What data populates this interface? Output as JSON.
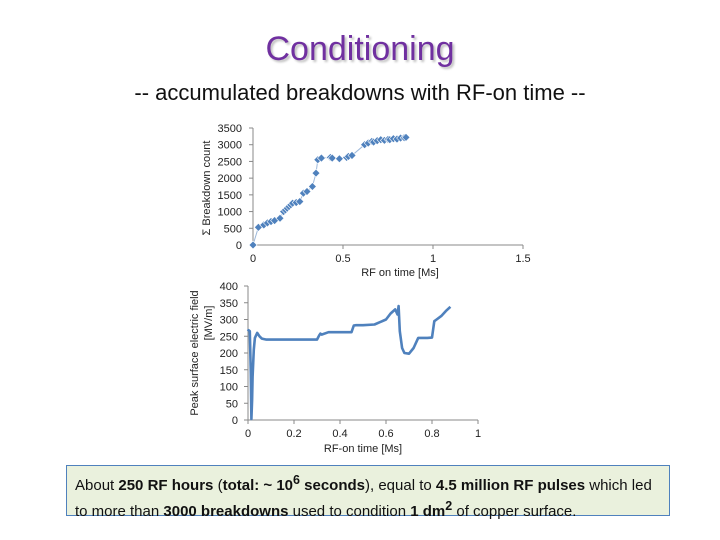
{
  "title": "Conditioning",
  "subtitle": "-- accumulated breakdowns with RF-on time --",
  "colors": {
    "title": "#7030a0",
    "series": "#4f81bd",
    "box_border": "#4f81bd",
    "box_fill": "#eaf1dd"
  },
  "footer": {
    "p1": "About ",
    "b1": "250 RF hours",
    "p2": " (",
    "b2": "total: ~ 10",
    "b2_sup": "6",
    "b2_end": " seconds",
    "p3": "), equal to ",
    "b3": "4.5 million RF pulses",
    "p4": " which led to more than ",
    "b4": "3000 breakdowns",
    "p5": " used to condition ",
    "b5": "1 dm",
    "b5_sup": "2",
    "p6": " of copper surface."
  },
  "chart_data": [
    {
      "type": "scatter",
      "title": "",
      "xlabel": "RF on time [Ms]",
      "ylabel": "Σ Breakdown count",
      "xlim": [
        0,
        1.5
      ],
      "ylim": [
        0,
        3500
      ],
      "x_ticks": [
        "0",
        "0.5",
        "1",
        "1.5"
      ],
      "y_ticks": [
        "0",
        "500",
        "1000",
        "1500",
        "2000",
        "2500",
        "3000",
        "3500"
      ],
      "grid": false,
      "marker": "diamond",
      "x": [
        0,
        0.03,
        0.06,
        0.08,
        0.1,
        0.12,
        0.15,
        0.17,
        0.18,
        0.19,
        0.2,
        0.21,
        0.22,
        0.24,
        0.26,
        0.28,
        0.3,
        0.33,
        0.35,
        0.36,
        0.38,
        0.43,
        0.44,
        0.48,
        0.52,
        0.53,
        0.55,
        0.62,
        0.64,
        0.66,
        0.67,
        0.69,
        0.71,
        0.73,
        0.75,
        0.76,
        0.78,
        0.8,
        0.82,
        0.84,
        0.85
      ],
      "y": [
        0,
        530,
        600,
        660,
        700,
        730,
        800,
        1000,
        1050,
        1100,
        1150,
        1200,
        1250,
        1270,
        1300,
        1550,
        1600,
        1750,
        2150,
        2550,
        2600,
        2620,
        2600,
        2580,
        2620,
        2650,
        2680,
        3000,
        3050,
        3100,
        3080,
        3120,
        3150,
        3130,
        3160,
        3150,
        3180,
        3170,
        3200,
        3210,
        3220
      ]
    },
    {
      "type": "line",
      "title": "",
      "xlabel": "RF-on time [Ms]",
      "ylabel": "Peak surface electric field [MV/m]",
      "xlim": [
        0,
        1
      ],
      "ylim": [
        0,
        400
      ],
      "x_ticks": [
        "0",
        "0.2",
        "0.4",
        "0.6",
        "0.8",
        "1"
      ],
      "y_ticks": [
        "0",
        "50",
        "100",
        "150",
        "200",
        "250",
        "300",
        "350",
        "400"
      ],
      "grid": false,
      "x": [
        0,
        0.002,
        0.008,
        0.012,
        0.015,
        0.018,
        0.02,
        0.025,
        0.03,
        0.04,
        0.05,
        0.06,
        0.08,
        0.1,
        0.15,
        0.2,
        0.25,
        0.3,
        0.31,
        0.315,
        0.32,
        0.35,
        0.4,
        0.45,
        0.46,
        0.47,
        0.5,
        0.55,
        0.6,
        0.62,
        0.64,
        0.65,
        0.655,
        0.66,
        0.67,
        0.68,
        0.7,
        0.72,
        0.74,
        0.76,
        0.78,
        0.8,
        0.81,
        0.82,
        0.84,
        0.86,
        0.88
      ],
      "y": [
        265,
        268,
        265,
        140,
        3,
        60,
        130,
        210,
        245,
        260,
        250,
        243,
        240,
        240,
        240,
        240,
        240,
        240,
        253,
        258,
        255,
        262,
        262,
        262,
        282,
        283,
        283,
        285,
        300,
        318,
        330,
        315,
        340,
        265,
        215,
        200,
        198,
        215,
        245,
        245,
        245,
        246,
        295,
        300,
        310,
        325,
        338
      ]
    }
  ]
}
